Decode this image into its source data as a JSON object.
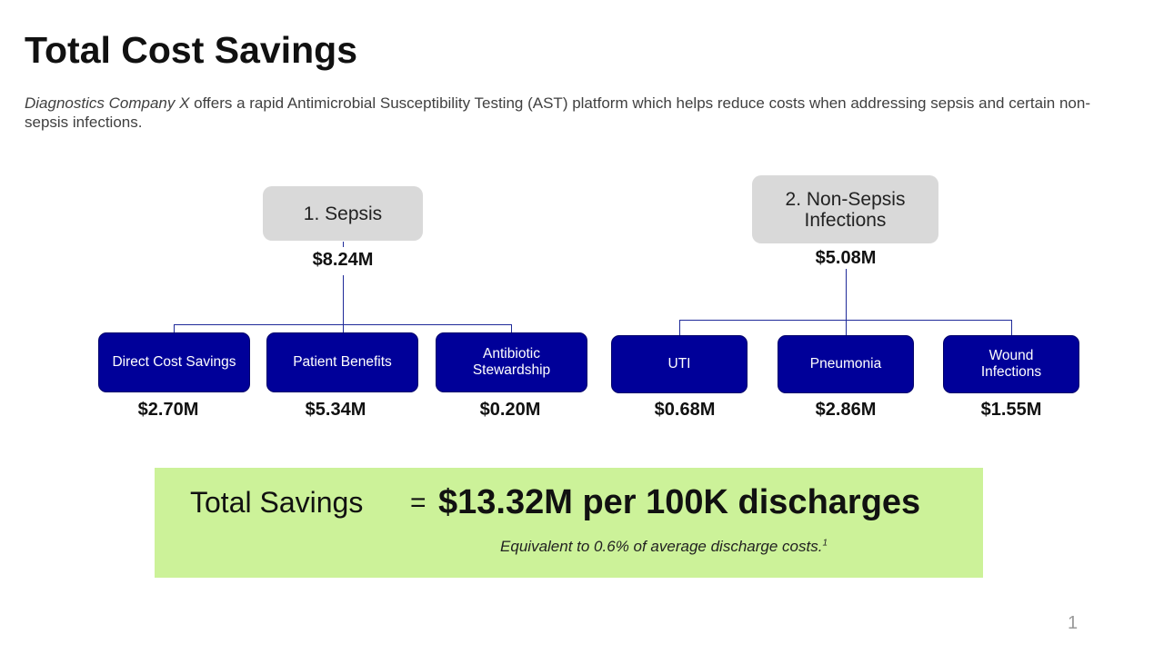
{
  "title": "Total Cost Savings",
  "subtitle": {
    "company": "Diagnostics Company X",
    "text": " offers a rapid Antimicrobial Susceptibility Testing (AST) platform which helps reduce costs when addressing sepsis and certain non-sepsis infections."
  },
  "sepsis": {
    "label": "1. Sepsis",
    "value": "$8.24M",
    "children": [
      {
        "label": "Direct Cost Savings",
        "value": "$2.70M"
      },
      {
        "label": "Patient Benefits",
        "value": "$5.34M"
      },
      {
        "label": "Antibiotic Stewardship",
        "value": "$0.20M"
      }
    ]
  },
  "non_sepsis": {
    "label": "2. Non-Sepsis Infections",
    "value": "$5.08M",
    "children": [
      {
        "label": "UTI",
        "value": "$0.68M"
      },
      {
        "label": "Pneumonia",
        "value": "$2.86M"
      },
      {
        "label": "Wound Infections",
        "value": "$1.55M"
      }
    ]
  },
  "total": {
    "label": "Total Savings",
    "equals": "=",
    "value": "$13.32M per 100K discharges",
    "note": "Equivalent to 0.6% of average discharge costs.",
    "footnote": "1"
  },
  "page_number": "1",
  "colors": {
    "node": "#000099",
    "parent": "#d9d9d9",
    "highlight": "#ccf299"
  }
}
